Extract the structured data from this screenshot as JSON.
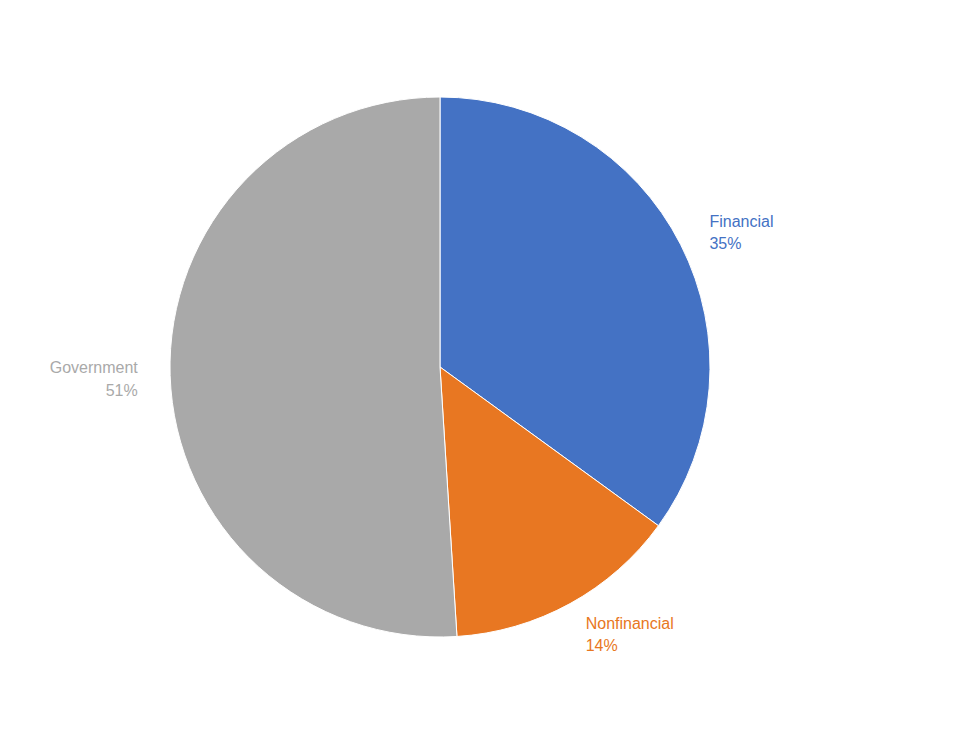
{
  "chart_data": {
    "type": "pie",
    "categories": [
      "Financial",
      "Nonfinancial",
      "Government"
    ],
    "values": [
      35,
      14,
      51
    ],
    "value_labels": [
      "35%",
      "14%",
      "51%"
    ],
    "colors": [
      "#4472C4",
      "#E87722",
      "#A9A9A9"
    ],
    "data_labels": true
  }
}
